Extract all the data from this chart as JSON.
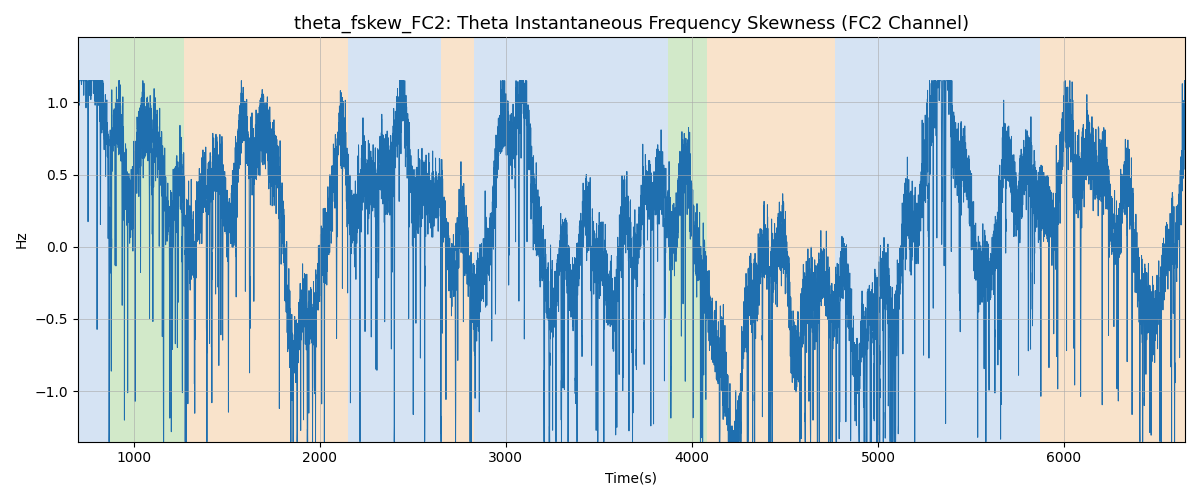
{
  "title": "theta_fskew_FC2: Theta Instantaneous Frequency Skewness (FC2 Channel)",
  "xlabel": "Time(s)",
  "ylabel": "Hz",
  "xlim": [
    700,
    6650
  ],
  "ylim": [
    -1.35,
    1.45
  ],
  "yticks": [
    -1.0,
    -0.5,
    0.0,
    0.5,
    1.0
  ],
  "line_color": "#1f6faf",
  "line_width": 0.7,
  "background_regions": [
    {
      "xmin": 700,
      "xmax": 870,
      "color": "#adc8e8",
      "alpha": 0.5
    },
    {
      "xmin": 870,
      "xmax": 1270,
      "color": "#90c87a",
      "alpha": 0.4
    },
    {
      "xmin": 1270,
      "xmax": 2150,
      "color": "#f5c899",
      "alpha": 0.5
    },
    {
      "xmin": 2150,
      "xmax": 2650,
      "color": "#adc8e8",
      "alpha": 0.5
    },
    {
      "xmin": 2650,
      "xmax": 2830,
      "color": "#f5c899",
      "alpha": 0.5
    },
    {
      "xmin": 2830,
      "xmax": 3870,
      "color": "#adc8e8",
      "alpha": 0.5
    },
    {
      "xmin": 3870,
      "xmax": 4080,
      "color": "#90c87a",
      "alpha": 0.4
    },
    {
      "xmin": 4080,
      "xmax": 4770,
      "color": "#f5c899",
      "alpha": 0.5
    },
    {
      "xmin": 4770,
      "xmax": 5870,
      "color": "#adc8e8",
      "alpha": 0.5
    },
    {
      "xmin": 5870,
      "xmax": 6650,
      "color": "#f5c899",
      "alpha": 0.5
    }
  ],
  "seed": 17,
  "n_points": 11900,
  "x_start": 700,
  "x_end": 6650,
  "grid_color": "#aaaaaa",
  "grid_alpha": 0.6,
  "grid_linewidth": 0.7,
  "figsize": [
    12.0,
    5.0
  ],
  "dpi": 100,
  "title_fontsize": 13
}
